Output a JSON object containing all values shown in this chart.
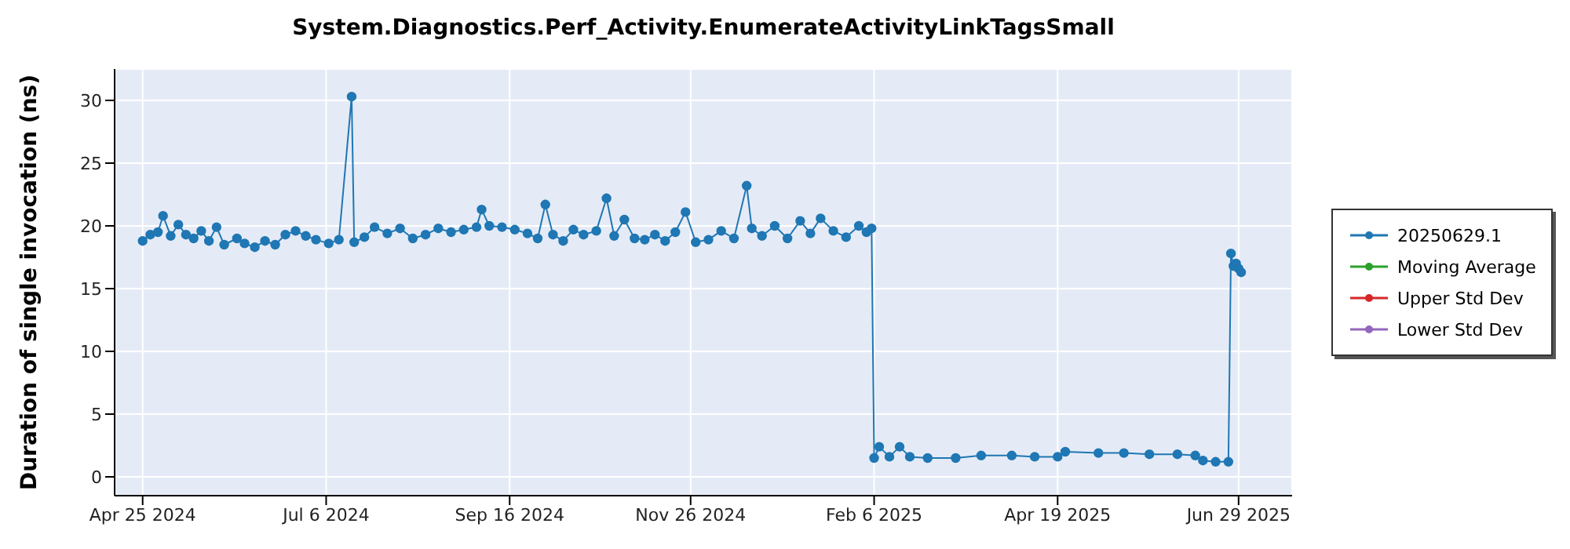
{
  "chart_data": {
    "type": "line",
    "title": "System.Diagnostics.Perf_Activity.EnumerateActivityLinkTagsSmall",
    "ylabel": "Duration of single invocation (ns)",
    "xlim": [
      "2024-04-14",
      "2025-07-20"
    ],
    "xticks": [
      {
        "value": "2024-04-25",
        "label": "Apr 25 2024"
      },
      {
        "value": "2024-07-06",
        "label": "Jul 6 2024"
      },
      {
        "value": "2024-09-16",
        "label": "Sep 16 2024"
      },
      {
        "value": "2024-11-26",
        "label": "Nov 26 2024"
      },
      {
        "value": "2025-02-06",
        "label": "Feb 6 2025"
      },
      {
        "value": "2025-04-19",
        "label": "Apr 19 2025"
      },
      {
        "value": "2025-06-29",
        "label": "Jun 29 2025"
      }
    ],
    "ylim": [
      -1.5,
      32.5
    ],
    "yticks": [
      0,
      5,
      10,
      15,
      20,
      25,
      30
    ],
    "grid": true,
    "legend": "right",
    "marker": "circle",
    "line_style": "solid",
    "series": [
      {
        "name": "20250629.1",
        "color": "#1f77b4",
        "x": [
          "2024-04-25",
          "2024-04-28",
          "2024-05-01",
          "2024-05-03",
          "2024-05-06",
          "2024-05-09",
          "2024-05-12",
          "2024-05-15",
          "2024-05-18",
          "2024-05-21",
          "2024-05-24",
          "2024-05-27",
          "2024-06-01",
          "2024-06-04",
          "2024-06-08",
          "2024-06-12",
          "2024-06-16",
          "2024-06-20",
          "2024-06-24",
          "2024-06-28",
          "2024-07-02",
          "2024-07-07",
          "2024-07-11",
          "2024-07-16",
          "2024-07-17",
          "2024-07-21",
          "2024-07-25",
          "2024-07-30",
          "2024-08-04",
          "2024-08-09",
          "2024-08-14",
          "2024-08-19",
          "2024-08-24",
          "2024-08-29",
          "2024-09-03",
          "2024-09-05",
          "2024-09-08",
          "2024-09-13",
          "2024-09-18",
          "2024-09-23",
          "2024-09-27",
          "2024-09-30",
          "2024-10-03",
          "2024-10-07",
          "2024-10-11",
          "2024-10-15",
          "2024-10-20",
          "2024-10-24",
          "2024-10-27",
          "2024-10-31",
          "2024-11-04",
          "2024-11-08",
          "2024-11-12",
          "2024-11-16",
          "2024-11-20",
          "2024-11-24",
          "2024-11-28",
          "2024-12-03",
          "2024-12-08",
          "2024-12-13",
          "2024-12-18",
          "2024-12-20",
          "2024-12-24",
          "2024-12-29",
          "2025-01-03",
          "2025-01-08",
          "2025-01-12",
          "2025-01-16",
          "2025-01-21",
          "2025-01-26",
          "2025-01-31",
          "2025-02-03",
          "2025-02-05",
          "2025-02-06",
          "2025-02-08",
          "2025-02-12",
          "2025-02-16",
          "2025-02-20",
          "2025-02-27",
          "2025-03-10",
          "2025-03-20",
          "2025-04-01",
          "2025-04-10",
          "2025-04-19",
          "2025-04-22",
          "2025-05-05",
          "2025-05-15",
          "2025-05-25",
          "2025-06-05",
          "2025-06-12",
          "2025-06-15",
          "2025-06-20",
          "2025-06-25",
          "2025-06-26",
          "2025-06-27",
          "2025-06-28",
          "2025-06-29",
          "2025-06-30"
        ],
        "values": [
          18.8,
          19.3,
          19.5,
          20.8,
          19.2,
          20.1,
          19.3,
          19.0,
          19.6,
          18.8,
          19.9,
          18.5,
          19.0,
          18.6,
          18.3,
          18.8,
          18.5,
          19.3,
          19.6,
          19.2,
          18.9,
          18.6,
          18.9,
          30.3,
          18.7,
          19.1,
          19.9,
          19.4,
          19.8,
          19.0,
          19.3,
          19.8,
          19.5,
          19.7,
          19.9,
          21.3,
          20.0,
          19.9,
          19.7,
          19.4,
          19.0,
          21.7,
          19.3,
          18.8,
          19.7,
          19.3,
          19.6,
          22.2,
          19.2,
          20.5,
          19.0,
          18.9,
          19.3,
          18.8,
          19.5,
          21.1,
          18.7,
          18.9,
          19.6,
          19.0,
          23.2,
          19.8,
          19.2,
          20.0,
          19.0,
          20.4,
          19.4,
          20.6,
          19.6,
          19.1,
          20.0,
          19.5,
          19.8,
          1.5,
          2.4,
          1.6,
          2.4,
          1.6,
          1.5,
          1.5,
          1.7,
          1.7,
          1.6,
          1.6,
          2.0,
          1.9,
          1.9,
          1.8,
          1.8,
          1.7,
          1.3,
          1.2,
          1.2,
          17.8,
          16.8,
          17.0,
          16.6,
          16.3
        ]
      },
      {
        "name": "Moving Average",
        "color": "#2ca02c"
      },
      {
        "name": "Upper Std Dev",
        "color": "#d62728"
      },
      {
        "name": "Lower Std Dev",
        "color": "#9467bd"
      }
    ]
  }
}
